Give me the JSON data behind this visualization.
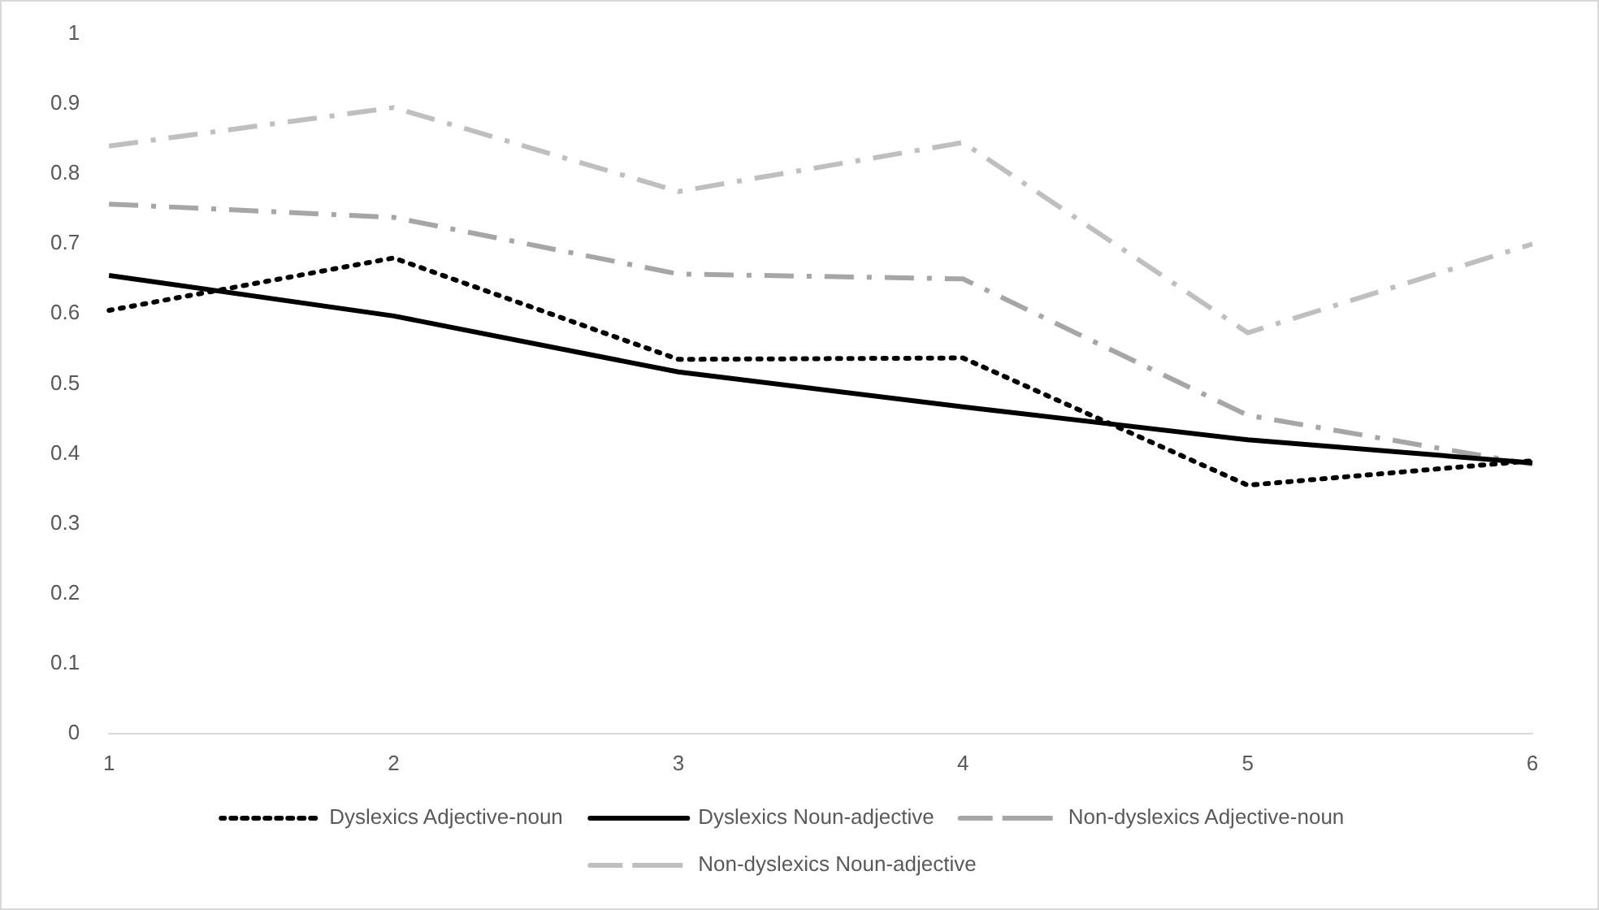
{
  "chart_data": {
    "type": "line",
    "categories": [
      "1",
      "2",
      "3",
      "4",
      "5",
      "6"
    ],
    "series": [
      {
        "name": "Dyslexics Adjective-noun",
        "color": "#000000",
        "line_style": "dotted",
        "values": [
          0.605,
          0.68,
          0.535,
          0.537,
          0.355,
          0.39
        ]
      },
      {
        "name": "Dyslexics Noun-adjective",
        "color": "#000000",
        "line_style": "solid",
        "values": [
          0.655,
          0.597,
          0.517,
          0.467,
          0.42,
          0.387
        ]
      },
      {
        "name": "Non-dyslexics Adjective-noun",
        "color": "#a6a6a6",
        "line_style": "dashed",
        "values": [
          0.757,
          0.738,
          0.657,
          0.65,
          0.455,
          0.385
        ]
      },
      {
        "name": "Non-dyslexics Noun-adjective",
        "color": "#bfbfbf",
        "line_style": "dashed",
        "values": [
          0.84,
          0.895,
          0.775,
          0.845,
          0.573,
          0.7
        ]
      }
    ],
    "ylim": [
      0,
      1
    ],
    "yticks": [
      0,
      0.1,
      0.2,
      0.3,
      0.4,
      0.5,
      0.6,
      0.7,
      0.8,
      0.9,
      1
    ],
    "grid": false,
    "legend": "bottom",
    "marker": "none"
  }
}
